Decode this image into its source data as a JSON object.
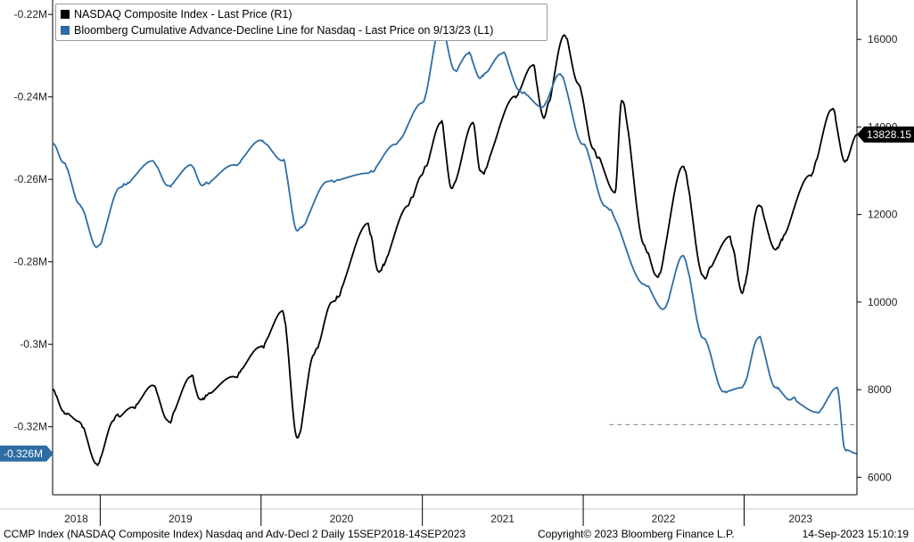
{
  "chart_data": {
    "type": "line",
    "legend_position": "top-left",
    "legend": [
      {
        "label": "NASDAQ Composite Index - Last Price (R1)",
        "color": "#000000"
      },
      {
        "label": "Bloomberg Cumulative Advance-Decline Line for Nasdaq - Last Price on 9/13/23 (L1)",
        "color": "#2e6da4"
      }
    ],
    "x_range": [
      "2018-09-15",
      "2023-09-14"
    ],
    "x_period_labels": [
      {
        "label": "2018",
        "start": "2018-09-15",
        "end": "2018-12-31"
      },
      {
        "label": "2019",
        "start": "2019-01-01",
        "end": "2019-12-31"
      },
      {
        "label": "2020",
        "start": "2020-01-01",
        "end": "2020-12-31"
      },
      {
        "label": "2021",
        "start": "2021-01-01",
        "end": "2021-12-31"
      },
      {
        "label": "2022",
        "start": "2022-01-01",
        "end": "2022-12-31"
      },
      {
        "label": "2023",
        "start": "2023-01-01",
        "end": "2023-09-14"
      }
    ],
    "left_axis": {
      "ylim": [
        -0.3365,
        -0.2165
      ],
      "ticks": [
        -0.22,
        -0.24,
        -0.26,
        -0.28,
        -0.3,
        -0.32
      ],
      "tick_labels": [
        "-0.22M",
        "-0.24M",
        "-0.26M",
        "-0.28M",
        "-0.3M",
        "-0.32M"
      ],
      "last_value_label": "-0.326M",
      "last_value": -0.3265,
      "reference_level": -0.3195
    },
    "right_axis": {
      "ylim": [
        5600,
        16900
      ],
      "ticks": [
        6000,
        8000,
        10000,
        12000,
        14000,
        16000
      ],
      "tick_labels": [
        "6000",
        "8000",
        "10000",
        "12000",
        "14000",
        "16000"
      ],
      "last_value_label": "13828.15",
      "last_value": 13828.15
    },
    "series": [
      {
        "axis": "right",
        "color": "#000000",
        "points": [
          [
            "2018-09-15",
            8010
          ],
          [
            "2018-10-10",
            7500
          ],
          [
            "2018-11-15",
            7270
          ],
          [
            "2018-12-24",
            6300
          ],
          [
            "2019-02-01",
            7300
          ],
          [
            "2019-03-15",
            7600
          ],
          [
            "2019-04-30",
            8100
          ],
          [
            "2019-06-03",
            7300
          ],
          [
            "2019-07-26",
            8300
          ],
          [
            "2019-08-15",
            7780
          ],
          [
            "2019-10-30",
            8300
          ],
          [
            "2019-12-31",
            8980
          ],
          [
            "2020-02-19",
            9800
          ],
          [
            "2020-03-23",
            6900
          ],
          [
            "2020-04-30",
            8800
          ],
          [
            "2020-06-10",
            10000
          ],
          [
            "2020-08-31",
            11800
          ],
          [
            "2020-09-23",
            10700
          ],
          [
            "2020-11-30",
            12200
          ],
          [
            "2020-12-31",
            12900
          ],
          [
            "2021-02-12",
            14100
          ],
          [
            "2021-03-08",
            12600
          ],
          [
            "2021-04-26",
            14100
          ],
          [
            "2021-05-12",
            13000
          ],
          [
            "2021-07-30",
            14700
          ],
          [
            "2021-09-07",
            15400
          ],
          [
            "2021-10-04",
            14200
          ],
          [
            "2021-11-19",
            16100
          ],
          [
            "2021-12-20",
            15000
          ],
          [
            "2022-01-24",
            13500
          ],
          [
            "2022-03-14",
            12500
          ],
          [
            "2022-03-29",
            14600
          ],
          [
            "2022-05-20",
            11300
          ],
          [
            "2022-06-16",
            10600
          ],
          [
            "2022-08-15",
            13100
          ],
          [
            "2022-09-30",
            10600
          ],
          [
            "2022-11-30",
            11500
          ],
          [
            "2022-12-28",
            10200
          ],
          [
            "2023-02-02",
            12200
          ],
          [
            "2023-03-13",
            11200
          ],
          [
            "2023-05-31",
            12900
          ],
          [
            "2023-07-19",
            14400
          ],
          [
            "2023-08-18",
            13200
          ],
          [
            "2023-09-14",
            13828
          ]
        ]
      },
      {
        "axis": "left",
        "color": "#2e6da4",
        "points": [
          [
            "2018-09-15",
            -0.251
          ],
          [
            "2018-10-10",
            -0.256
          ],
          [
            "2018-11-15",
            -0.266
          ],
          [
            "2018-12-24",
            -0.2765
          ],
          [
            "2019-02-15",
            -0.262
          ],
          [
            "2019-04-30",
            -0.2555
          ],
          [
            "2019-06-03",
            -0.2615
          ],
          [
            "2019-07-26",
            -0.2565
          ],
          [
            "2019-08-20",
            -0.2615
          ],
          [
            "2019-10-30",
            -0.2565
          ],
          [
            "2019-12-31",
            -0.2505
          ],
          [
            "2020-02-19",
            -0.2555
          ],
          [
            "2020-03-23",
            -0.2725
          ],
          [
            "2020-05-31",
            -0.2605
          ],
          [
            "2020-08-31",
            -0.2585
          ],
          [
            "2020-10-31",
            -0.2515
          ],
          [
            "2020-12-31",
            -0.2415
          ],
          [
            "2021-02-12",
            -0.2225
          ],
          [
            "2021-03-15",
            -0.2335
          ],
          [
            "2021-04-15",
            -0.2295
          ],
          [
            "2021-05-12",
            -0.2355
          ],
          [
            "2021-07-01",
            -0.2295
          ],
          [
            "2021-08-10",
            -0.2385
          ],
          [
            "2021-09-30",
            -0.2425
          ],
          [
            "2021-11-08",
            -0.2345
          ],
          [
            "2021-12-31",
            -0.2515
          ],
          [
            "2022-02-20",
            -0.2665
          ],
          [
            "2022-05-20",
            -0.2855
          ],
          [
            "2022-07-01",
            -0.2915
          ],
          [
            "2022-08-15",
            -0.2785
          ],
          [
            "2022-09-30",
            -0.2985
          ],
          [
            "2022-11-15",
            -0.3115
          ],
          [
            "2022-12-28",
            -0.3105
          ],
          [
            "2023-02-02",
            -0.2985
          ],
          [
            "2023-03-13",
            -0.3105
          ],
          [
            "2023-04-15",
            -0.3135
          ],
          [
            "2023-06-15",
            -0.3165
          ],
          [
            "2023-07-31",
            -0.3105
          ],
          [
            "2023-08-18",
            -0.3255
          ],
          [
            "2023-09-13",
            -0.3265
          ]
        ]
      }
    ]
  },
  "footer": {
    "left": "CCMP Index (NASDAQ Composite Index) Nasdaq and Adv-Decl 2  Daily 15SEP2018-14SEP2023",
    "center": "Copyright© 2023 Bloomberg Finance L.P.",
    "right": "14-Sep-2023 15:10:19"
  }
}
